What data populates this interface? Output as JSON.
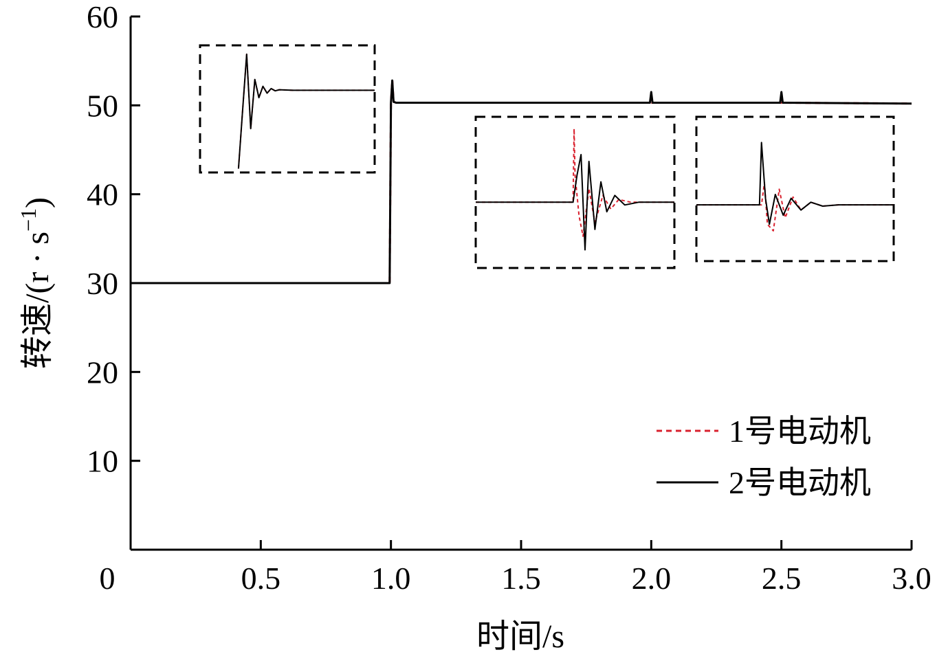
{
  "chart_data": {
    "type": "line",
    "xlabel": "时间/s",
    "ylabel_text": "转速/(r · s",
    "ylabel_sup": "−1",
    "ylabel_close": ")",
    "xlim": [
      0,
      3.0
    ],
    "ylim": [
      0,
      60
    ],
    "xticks": [
      {
        "value": 0,
        "label": "0"
      },
      {
        "value": 0.5,
        "label": "0.5"
      },
      {
        "value": 1.0,
        "label": "1.0"
      },
      {
        "value": 1.5,
        "label": "1.5"
      },
      {
        "value": 2.0,
        "label": "2.0"
      },
      {
        "value": 2.5,
        "label": "2.5"
      },
      {
        "value": 3.0,
        "label": "3.0"
      }
    ],
    "yticks": [
      {
        "value": 10,
        "label": "10"
      },
      {
        "value": 20,
        "label": "20"
      },
      {
        "value": 30,
        "label": "30"
      },
      {
        "value": 40,
        "label": "40"
      },
      {
        "value": 50,
        "label": "50"
      },
      {
        "value": 60,
        "label": "60"
      }
    ],
    "grid": false,
    "legend_position": "bottom-right",
    "series": [
      {
        "name": "1号电动机",
        "color": "#d9212e",
        "style": "dashed",
        "x": [
          0,
          0.995,
          1.0,
          1.005,
          1.01,
          1.02,
          1.5,
          2.0,
          2.5,
          3.0
        ],
        "y": [
          30,
          30,
          50.3,
          52.8,
          50.4,
          50.3,
          50.3,
          50.3,
          50.3,
          50.2
        ]
      },
      {
        "name": "2号电动机",
        "color": "#000000",
        "style": "solid",
        "x": [
          0,
          0.995,
          1.0,
          1.005,
          1.01,
          1.02,
          1.5,
          1.995,
          2.0,
          2.005,
          2.495,
          2.5,
          2.505,
          3.0
        ],
        "y": [
          30,
          30,
          50.3,
          52.8,
          50.4,
          50.3,
          50.3,
          50.3,
          51.5,
          50.3,
          50.3,
          51.5,
          50.3,
          50.2
        ]
      }
    ],
    "insets": [
      {
        "name": "inset-step-1s",
        "series": [
          {
            "color": "#d9212e",
            "style": "dashed",
            "x": [
              0,
              0.03,
              0.06,
              0.09,
              0.12,
              0.15,
              0.18,
              0.21,
              0.24,
              0.27,
              0.3,
              0.4,
              0.55,
              0.75,
              1.0
            ],
            "y": [
              0,
              0.5,
              1.0,
              0.35,
              0.78,
              0.62,
              0.72,
              0.66,
              0.7,
              0.68,
              0.69,
              0.685,
              0.685,
              0.685,
              0.685
            ]
          },
          {
            "color": "#000000",
            "style": "solid",
            "x": [
              0,
              0.03,
              0.06,
              0.09,
              0.12,
              0.15,
              0.18,
              0.21,
              0.24,
              0.27,
              0.3,
              0.4,
              0.55,
              0.75,
              1.0
            ],
            "y": [
              0,
              0.5,
              1.0,
              0.35,
              0.78,
              0.62,
              0.72,
              0.66,
              0.7,
              0.68,
              0.69,
              0.685,
              0.685,
              0.685,
              0.685
            ]
          }
        ]
      },
      {
        "name": "inset-disturbance-2s",
        "series": [
          {
            "color": "#d9212e",
            "style": "dashed",
            "x": [
              0,
              0.49,
              0.495,
              0.5,
              0.52,
              0.54,
              0.57,
              0.6,
              0.64,
              0.68,
              0.72,
              0.78,
              1.0
            ],
            "y": [
              0.45,
              0.45,
              0.99,
              0.65,
              0.35,
              0.2,
              0.55,
              0.3,
              0.5,
              0.4,
              0.47,
              0.45,
              0.45
            ]
          },
          {
            "color": "#000000",
            "style": "solid",
            "x": [
              0,
              0.49,
              0.51,
              0.53,
              0.55,
              0.57,
              0.6,
              0.63,
              0.66,
              0.7,
              0.75,
              0.82,
              1.0
            ],
            "y": [
              0.45,
              0.45,
              0.65,
              0.8,
              0.1,
              0.75,
              0.25,
              0.6,
              0.38,
              0.5,
              0.43,
              0.45,
              0.45
            ]
          }
        ]
      },
      {
        "name": "inset-disturbance-2.5s",
        "series": [
          {
            "color": "#d9212e",
            "style": "dashed",
            "x": [
              0,
              0.33,
              0.345,
              0.36,
              0.39,
              0.42,
              0.45,
              0.49,
              0.53,
              0.58,
              0.64,
              0.72,
              1.0
            ],
            "y": [
              0.4,
              0.4,
              0.57,
              0.25,
              0.2,
              0.52,
              0.3,
              0.46,
              0.36,
              0.42,
              0.39,
              0.4,
              0.4
            ]
          },
          {
            "color": "#000000",
            "style": "solid",
            "x": [
              0,
              0.32,
              0.33,
              0.35,
              0.37,
              0.4,
              0.44,
              0.48,
              0.53,
              0.58,
              0.64,
              0.72,
              1.0
            ],
            "y": [
              0.4,
              0.4,
              0.88,
              0.45,
              0.25,
              0.48,
              0.32,
              0.45,
              0.36,
              0.42,
              0.39,
              0.4,
              0.4
            ]
          }
        ]
      }
    ]
  }
}
